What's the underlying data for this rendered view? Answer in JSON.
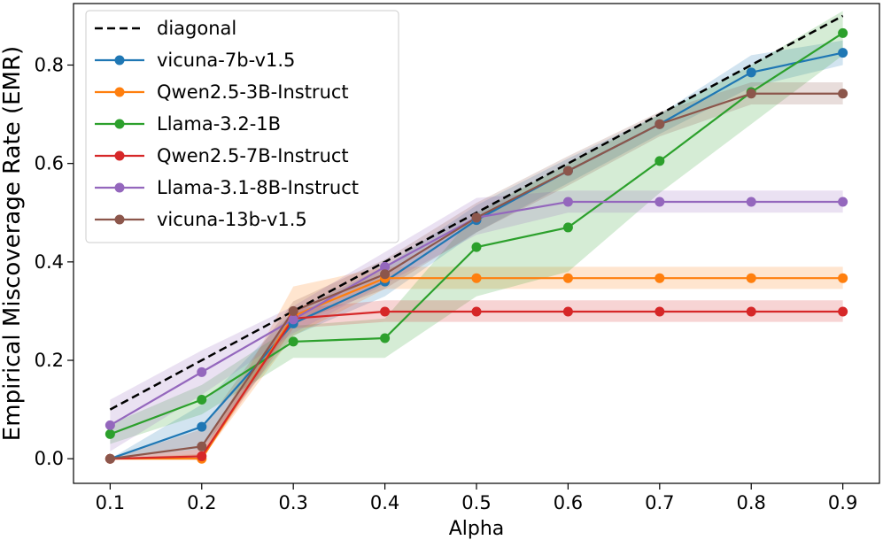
{
  "chart_data": {
    "type": "line",
    "title": "",
    "xlabel": "Alpha",
    "ylabel": "Empirical Miscoverage Rate (EMR)",
    "x": [
      0.1,
      0.2,
      0.3,
      0.4,
      0.5,
      0.6,
      0.7,
      0.8,
      0.9
    ],
    "xlim": [
      0.06,
      0.94
    ],
    "ylim": [
      -0.05,
      0.925
    ],
    "xticks": [
      "0.1",
      "0.2",
      "0.3",
      "0.4",
      "0.5",
      "0.6",
      "0.7",
      "0.8",
      "0.9"
    ],
    "yticks": [
      "0.0",
      "0.2",
      "0.4",
      "0.6",
      "0.8"
    ],
    "legend_position": "top-left",
    "reference": {
      "name": "diagonal",
      "color": "#000000",
      "values": [
        0.1,
        0.2,
        0.3,
        0.4,
        0.5,
        0.6,
        0.7,
        0.8,
        0.9
      ]
    },
    "series": [
      {
        "name": "vicuna-7b-v1.5",
        "color": "#1f77b4",
        "values": [
          0.0,
          0.065,
          0.275,
          0.36,
          0.485,
          0.585,
          0.68,
          0.785,
          0.825
        ],
        "lower": [
          0.0,
          0.02,
          0.25,
          0.33,
          0.46,
          0.56,
          0.66,
          0.755,
          0.8
        ],
        "upper": [
          0.0,
          0.11,
          0.3,
          0.39,
          0.515,
          0.61,
          0.7,
          0.82,
          0.85
        ]
      },
      {
        "name": "Qwen2.5-3B-Instruct",
        "color": "#ff7f0e",
        "values": [
          0.0,
          0.0,
          0.29,
          0.367,
          0.367,
          0.367,
          0.367,
          0.367,
          0.367
        ],
        "lower": [
          0.0,
          0.0,
          0.25,
          0.345,
          0.345,
          0.345,
          0.345,
          0.345,
          0.345
        ],
        "upper": [
          0.0,
          0.01,
          0.35,
          0.39,
          0.39,
          0.39,
          0.39,
          0.39,
          0.39
        ]
      },
      {
        "name": "Llama-3.2-1B",
        "color": "#2ca02c",
        "values": [
          0.05,
          0.12,
          0.238,
          0.245,
          0.43,
          0.47,
          0.605,
          0.745,
          0.865
        ],
        "lower": [
          0.03,
          0.09,
          0.205,
          0.205,
          0.33,
          0.38,
          0.54,
          0.68,
          0.82
        ],
        "upper": [
          0.07,
          0.15,
          0.27,
          0.285,
          0.5,
          0.6,
          0.7,
          0.8,
          0.91
        ]
      },
      {
        "name": "Qwen2.5-7B-Instruct",
        "color": "#d62728",
        "values": [
          0.0,
          0.005,
          0.285,
          0.299,
          0.299,
          0.299,
          0.299,
          0.299,
          0.299
        ],
        "lower": [
          0.0,
          0.0,
          0.265,
          0.278,
          0.278,
          0.278,
          0.278,
          0.278,
          0.278
        ],
        "upper": [
          0.0,
          0.02,
          0.305,
          0.322,
          0.322,
          0.322,
          0.322,
          0.322,
          0.322
        ]
      },
      {
        "name": "Llama-3.1-8B-Instruct",
        "color": "#9467bd",
        "values": [
          0.068,
          0.176,
          0.283,
          0.39,
          0.49,
          0.522,
          0.522,
          0.522,
          0.522
        ],
        "lower": [
          0.015,
          0.13,
          0.255,
          0.355,
          0.455,
          0.5,
          0.5,
          0.5,
          0.5
        ],
        "upper": [
          0.12,
          0.22,
          0.31,
          0.42,
          0.53,
          0.545,
          0.545,
          0.545,
          0.545
        ]
      },
      {
        "name": "vicuna-13b-v1.5",
        "color": "#8c564b",
        "values": [
          0.0,
          0.025,
          0.3,
          0.375,
          0.49,
          0.585,
          0.68,
          0.742,
          0.742
        ],
        "lower": [
          0.0,
          0.0,
          0.275,
          0.345,
          0.46,
          0.555,
          0.655,
          0.72,
          0.72
        ],
        "upper": [
          0.0,
          0.06,
          0.32,
          0.405,
          0.52,
          0.615,
          0.705,
          0.765,
          0.765
        ]
      }
    ]
  }
}
